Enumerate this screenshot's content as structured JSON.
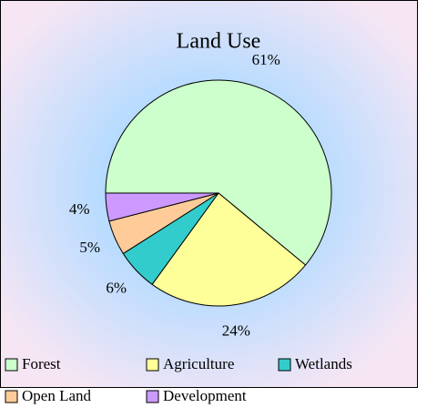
{
  "chart_data": {
    "type": "pie",
    "title": "Land Use",
    "categories": [
      "Forest",
      "Agriculture",
      "Wetlands",
      "Open Land",
      "Development"
    ],
    "values": [
      61,
      24,
      6,
      5,
      4
    ],
    "value_labels": [
      "61%",
      "24%",
      "6%",
      "5%",
      "4%"
    ],
    "colors": [
      "#ccffcc",
      "#ffff99",
      "#33cccc",
      "#ffcc99",
      "#cc99ff"
    ]
  }
}
